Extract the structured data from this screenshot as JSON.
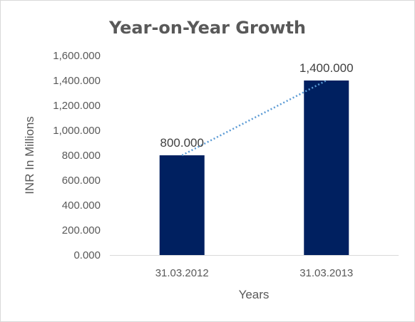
{
  "chart_data": {
    "type": "bar",
    "title": "Year-on-Year Growth",
    "xlabel": "Years",
    "ylabel": "INR In Millions",
    "categories": [
      "31.03.2012",
      "31.03.2013"
    ],
    "values": [
      800,
      1400
    ],
    "data_labels": [
      "800.000",
      "1,400.000"
    ],
    "y_ticks": [
      0,
      200,
      400,
      600,
      800,
      1000,
      1200,
      1400,
      1600
    ],
    "y_tick_labels": [
      "0.000",
      "200.000",
      "400.000",
      "600.000",
      "800.000",
      "1,000.000",
      "1,200.000",
      "1,400.000",
      "1,600.000"
    ],
    "ylim": [
      0,
      1600
    ],
    "grid": false,
    "legend": "none",
    "trendline": {
      "type": "linear",
      "style": "dotted"
    },
    "colors": {
      "bar": "#002060",
      "trendline": "#5b9bd5",
      "axis": "#d9d9d9",
      "text": "#595959"
    }
  }
}
